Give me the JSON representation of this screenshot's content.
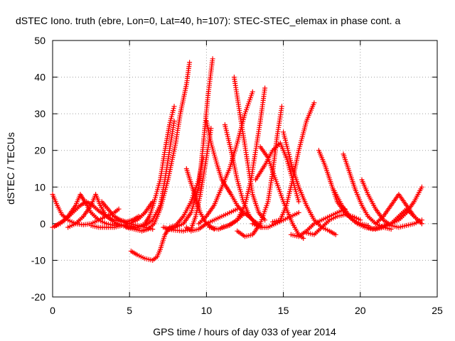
{
  "chart_data": {
    "type": "scatter",
    "title": "dSTEC Iono. truth (ebre, Lon=0, Lat=40, h=107): STEC-STEC_elemax in phase cont. a",
    "xlabel": "GPS time / hours of day 033 of year 2014",
    "ylabel": "dSTEC  / TECUs",
    "xlim": [
      0,
      25
    ],
    "ylim": [
      -20,
      50
    ],
    "x_ticks": [
      0,
      5,
      10,
      15,
      20,
      25
    ],
    "y_ticks": [
      -20,
      -10,
      0,
      10,
      20,
      30,
      40,
      50
    ],
    "grid": true,
    "marker": "plus",
    "color": "#ff0000",
    "series": [
      {
        "x": [
          0.0,
          0.3,
          0.6,
          1.0,
          1.5,
          2.0,
          2.5,
          3.0,
          3.5,
          4.0,
          4.3
        ],
        "values": [
          8,
          5,
          2.5,
          1,
          0,
          -0.3,
          0,
          1,
          2,
          3,
          4
        ]
      },
      {
        "x": [
          0.0,
          0.5,
          1.0,
          1.5,
          1.8,
          2.1,
          2.5,
          3.0,
          3.5,
          4.0,
          4.5
        ],
        "values": [
          -1,
          0,
          2,
          5,
          8,
          6,
          3,
          1,
          0,
          -0.5,
          -0.3
        ]
      },
      {
        "x": [
          0.2,
          0.8,
          1.3,
          1.8,
          2.2,
          2.6,
          3.0,
          3.5,
          4.0,
          4.5,
          5.0,
          5.5,
          6.0,
          6.5
        ],
        "values": [
          -0.5,
          1,
          3,
          5,
          6,
          5,
          3.5,
          2,
          1,
          0.5,
          0,
          -0.5,
          -1,
          -1.5
        ]
      },
      {
        "x": [
          1.0,
          1.5,
          2.0,
          2.5,
          2.8,
          3.1,
          3.5,
          4.0,
          4.5,
          5.0
        ],
        "values": [
          -1,
          0,
          2,
          5,
          8,
          5,
          2,
          0.5,
          -0.5,
          -1
        ]
      },
      {
        "x": [
          3.2,
          3.6,
          4.0,
          4.4,
          4.8,
          5.2,
          5.6
        ],
        "values": [
          6,
          4,
          2,
          1,
          0.5,
          1,
          2
        ]
      },
      {
        "x": [
          2.5,
          3.0,
          3.5,
          4.0,
          4.5,
          5.0,
          5.5,
          6.0,
          6.5
        ],
        "values": [
          -0.5,
          -1,
          -1,
          -1,
          -0.5,
          0,
          1,
          3,
          6
        ]
      },
      {
        "x": [
          4.0,
          4.5,
          5.0,
          5.5,
          6.0,
          6.3,
          6.6,
          7.0,
          7.3,
          7.6,
          7.9
        ],
        "values": [
          0,
          -0.5,
          -1,
          -1,
          0,
          2,
          6,
          12,
          20,
          27,
          32
        ]
      },
      {
        "x": [
          4.8,
          5.3,
          5.8,
          6.2,
          6.6,
          7.0,
          7.5,
          8.0,
          8.3,
          8.7,
          8.9
        ],
        "values": [
          -1,
          -1.5,
          -2,
          -1.5,
          0,
          4,
          12,
          22,
          30,
          38,
          44
        ]
      },
      {
        "x": [
          5.0,
          5.5,
          6.0,
          6.5,
          7.0,
          7.3,
          7.6,
          7.9
        ],
        "values": [
          -0.5,
          -1,
          -0.5,
          1,
          5,
          12,
          20,
          28
        ]
      },
      {
        "x": [
          5.1,
          5.5,
          6.0,
          6.5,
          6.8,
          7.0,
          7.3,
          7.6,
          8.0,
          8.5,
          9.0,
          9.5,
          9.8
        ],
        "values": [
          -7.5,
          -8.5,
          -9.5,
          -10,
          -9,
          -7,
          -3,
          -1,
          -0.5,
          2,
          6,
          12,
          18
        ]
      },
      {
        "x": [
          7.2,
          7.6,
          8.0,
          8.5,
          9.0,
          9.5,
          9.8,
          10.1,
          10.4
        ],
        "values": [
          -1,
          -1.5,
          -1,
          0,
          3,
          10,
          22,
          35,
          45
        ]
      },
      {
        "x": [
          7.5,
          8.0,
          8.5,
          9.0,
          9.3,
          9.6,
          10.0,
          10.3
        ],
        "values": [
          -1.5,
          -1.8,
          -2,
          -1.5,
          2,
          8,
          18,
          26
        ]
      },
      {
        "x": [
          8.7,
          9.0,
          9.3,
          9.6,
          10.0,
          10.5
        ],
        "values": [
          15,
          11,
          7,
          3,
          0,
          -1.5
        ]
      },
      {
        "x": [
          8.7,
          9.0,
          9.5,
          10.0,
          10.5,
          11.0,
          11.5,
          12.0
        ],
        "values": [
          -1,
          -2,
          -1.5,
          0,
          1,
          2,
          3,
          4
        ]
      },
      {
        "x": [
          10.0,
          10.3,
          10.7,
          11.0,
          11.3,
          11.6,
          12.0,
          12.4,
          12.8
        ],
        "values": [
          28,
          22,
          16,
          12,
          10,
          8,
          5,
          3,
          2
        ]
      },
      {
        "x": [
          9.5,
          10.0,
          10.5,
          11.0,
          11.5,
          12.0,
          12.5,
          13.0
        ],
        "values": [
          0,
          2,
          5,
          10,
          15,
          22,
          30,
          36
        ]
      },
      {
        "x": [
          10.2,
          10.8,
          11.4,
          12.0,
          12.5,
          13.0,
          13.5
        ],
        "values": [
          -1,
          -1.5,
          -0.5,
          1,
          3,
          1,
          -0.5
        ]
      },
      {
        "x": [
          11.0,
          11.5,
          12.0,
          12.5,
          12.9,
          13.2,
          13.5,
          13.8
        ],
        "values": [
          -1,
          -0.5,
          1,
          5,
          12,
          20,
          28,
          37
        ]
      },
      {
        "x": [
          11.8,
          12.1,
          12.4,
          12.7,
          13.0,
          13.4,
          13.8
        ],
        "values": [
          40,
          32,
          24,
          16,
          8,
          3,
          1
        ]
      },
      {
        "x": [
          11.2,
          11.6,
          12.0,
          12.4,
          12.8,
          13.2,
          13.6
        ],
        "values": [
          27,
          20,
          12,
          6,
          2,
          0,
          -1
        ]
      },
      {
        "x": [
          12.0,
          12.5,
          13.0,
          13.5,
          14.0,
          14.3,
          14.6,
          14.9
        ],
        "values": [
          -2,
          -3.5,
          -3,
          0,
          6,
          14,
          24,
          32
        ]
      },
      {
        "x": [
          13.0,
          13.5,
          14.0,
          14.5,
          15.0,
          15.5,
          16.0
        ],
        "values": [
          0,
          -1,
          -1,
          0,
          1,
          2,
          3
        ]
      },
      {
        "x": [
          13.2,
          13.8,
          14.3,
          14.8,
          15.2,
          15.6,
          16.0
        ],
        "values": [
          12,
          16,
          20,
          22,
          18,
          12,
          6
        ]
      },
      {
        "x": [
          13.5,
          14.0,
          14.5,
          15.0,
          15.3,
          15.6,
          16.0,
          16.3
        ],
        "values": [
          21,
          18,
          12,
          6,
          3,
          0,
          -3,
          -4
        ]
      },
      {
        "x": [
          14.3,
          14.8,
          15.2,
          15.6,
          16.0,
          16.5,
          17.0
        ],
        "values": [
          0.5,
          1,
          5,
          12,
          20,
          28,
          33
        ]
      },
      {
        "x": [
          15.0,
          15.3,
          15.6,
          16.0,
          16.5,
          17.0,
          17.5,
          18.0,
          18.4
        ],
        "values": [
          25,
          20,
          15,
          10,
          5,
          1,
          -1,
          -2,
          -3
        ]
      },
      {
        "x": [
          15.5,
          16.0,
          16.5,
          17.0,
          17.5,
          18.0,
          18.5,
          19.0
        ],
        "values": [
          -3,
          -3.5,
          -2,
          0,
          1,
          2,
          3,
          4
        ]
      },
      {
        "x": [
          16.5,
          17.0,
          17.5,
          18.0,
          18.5,
          19.0,
          19.5,
          20.0
        ],
        "values": [
          -2.5,
          -3,
          -1,
          1,
          2,
          2.5,
          2,
          1
        ]
      },
      {
        "x": [
          17.3,
          17.7,
          18.1,
          18.5,
          19.0,
          19.5,
          20.0,
          20.5
        ],
        "values": [
          20,
          16,
          11,
          6,
          3,
          1,
          0,
          -0.5
        ]
      },
      {
        "x": [
          18.3,
          18.8,
          19.3,
          19.8,
          20.3,
          20.8,
          21.3,
          21.8
        ],
        "values": [
          9,
          5,
          2,
          0,
          -1,
          -1.5,
          -1,
          0
        ]
      },
      {
        "x": [
          18.9,
          19.3,
          19.7,
          20.1,
          20.5,
          21.0,
          21.5,
          22.0
        ],
        "values": [
          19,
          14,
          9,
          5,
          2,
          0,
          -1,
          -1.5
        ]
      },
      {
        "x": [
          20.1,
          20.5,
          21.0,
          21.5,
          22.0,
          22.5,
          23.0,
          23.5,
          24.0
        ],
        "values": [
          12,
          8,
          4,
          1,
          -0.5,
          -1,
          -0.5,
          0,
          1
        ]
      },
      {
        "x": [
          20.5,
          21.0,
          21.5,
          22.0,
          22.5,
          23.0,
          23.5,
          24.0
        ],
        "values": [
          -1,
          -1.5,
          -1,
          0,
          1,
          3,
          6,
          10
        ]
      },
      {
        "x": [
          21.0,
          21.5,
          22.0,
          22.5,
          23.0,
          23.5,
          24.0
        ],
        "values": [
          0,
          2,
          5,
          8,
          5,
          2,
          0
        ]
      },
      {
        "x": [
          21.5,
          22.0,
          22.5,
          23.0,
          23.5,
          24.0
        ],
        "values": [
          -1,
          0,
          2,
          4,
          2,
          0
        ]
      }
    ]
  }
}
